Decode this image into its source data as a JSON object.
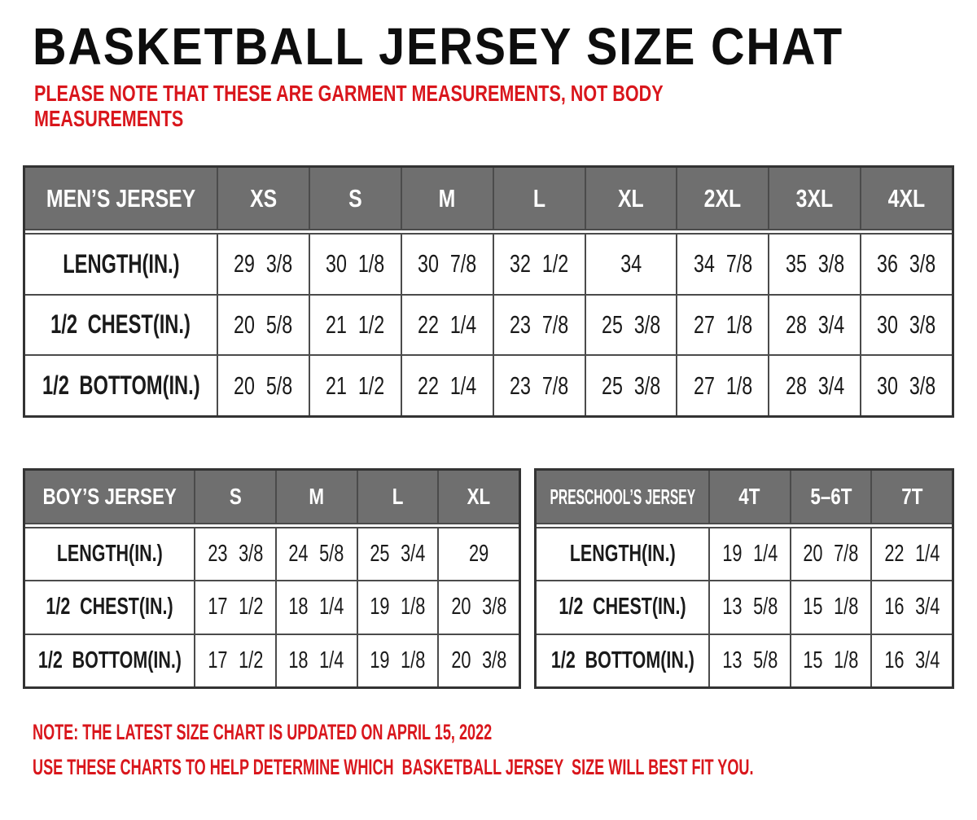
{
  "page": {
    "title": "BASKETBALL JERSEY SIZE CHAT",
    "intro_note": "PLEASE NOTE THAT THESE ARE GARMENT MEASUREMENTS, NOT BODY\nMEASUREMENTS",
    "footer_note_1": "NOTE: THE LATEST SIZE CHART IS UPDATED ON APRIL 15, 2022",
    "footer_note_2": "USE THESE CHARTS TO HELP DETERMINE WHICH  BASKETBALL JERSEY  SIZE WILL BEST FIT YOU.",
    "colors": {
      "accent_red": "#d9161c",
      "header_gray": "#6f6f6f",
      "grid_line": "#4b4b4b",
      "outer_border": "#333333"
    }
  },
  "tables": {
    "mens": {
      "header": [
        "MEN’S JERSEY",
        "XS",
        "S",
        "M",
        "L",
        "XL",
        "2XL",
        "3XL",
        "4XL"
      ],
      "rows": [
        {
          "label": "LENGTH(IN.)",
          "values": [
            "29 3/8",
            "30 1/8",
            "30 7/8",
            "32 1/2",
            "34",
            "34 7/8",
            "35 3/8",
            "36 3/8"
          ]
        },
        {
          "label": "1/2 CHEST(IN.)",
          "values": [
            "20 5/8",
            "21 1/2",
            "22 1/4",
            "23 7/8",
            "25 3/8",
            "27 1/8",
            "28 3/4",
            "30 3/8"
          ]
        },
        {
          "label": "1/2 BOTTOM(IN.)",
          "values": [
            "20 5/8",
            "21 1/2",
            "22 1/4",
            "23 7/8",
            "25 3/8",
            "27 1/8",
            "28 3/4",
            "30 3/8"
          ]
        }
      ]
    },
    "boys": {
      "header": [
        "BOY’S JERSEY",
        "S",
        "M",
        "L",
        "XL"
      ],
      "rows": [
        {
          "label": "LENGTH(IN.)",
          "values": [
            "23 3/8",
            "24 5/8",
            "25 3/4",
            "29"
          ]
        },
        {
          "label": "1/2 CHEST(IN.)",
          "values": [
            "17 1/2",
            "18 1/4",
            "19 1/8",
            "20 3/8"
          ]
        },
        {
          "label": "1/2 BOTTOM(IN.)",
          "values": [
            "17 1/2",
            "18 1/4",
            "19 1/8",
            "20 3/8"
          ]
        }
      ]
    },
    "preschool": {
      "header": [
        "PRESCHOOL’S JERSEY",
        "4T",
        "5–6T",
        "7T"
      ],
      "rows": [
        {
          "label": "LENGTH(IN.)",
          "values": [
            "19 1/4",
            "20 7/8",
            "22 1/4"
          ]
        },
        {
          "label": "1/2 CHEST(IN.)",
          "values": [
            "13 5/8",
            "15 1/8",
            "16 3/4"
          ]
        },
        {
          "label": "1/2 BOTTOM(IN.)",
          "values": [
            "13 5/8",
            "15 1/8",
            "16 3/4"
          ]
        }
      ]
    }
  }
}
